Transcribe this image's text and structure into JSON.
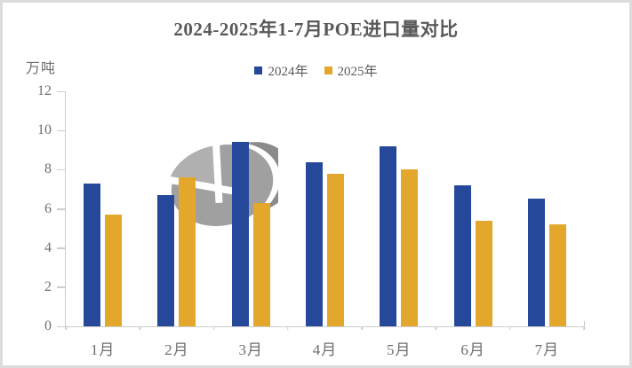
{
  "frame": {
    "border_color": "#DCDCDC",
    "background": "#FFFFFF"
  },
  "header": {
    "title": "2024-2025年1-7月POE进口量对比",
    "title_color": "#595959"
  },
  "axis": {
    "unit_label": "万吨",
    "line_color": "#CDCDCD",
    "label_color": "#6E6E6E"
  },
  "watermark": {
    "name": "gray-globe-logo",
    "base_color": "#A0A0A0",
    "dark_color": "#8B8B8B",
    "light_color": "#B0B0B0"
  },
  "chart_data": {
    "type": "bar",
    "title": "2024-2025年1-7月POE进口量对比",
    "ylabel": "万吨",
    "xlabel": "",
    "categories": [
      "1月",
      "2月",
      "3月",
      "4月",
      "5月",
      "6月",
      "7月"
    ],
    "series": [
      {
        "name": "2024年",
        "color": "#26489B",
        "values": [
          7.3,
          6.7,
          9.4,
          8.4,
          9.2,
          7.2,
          6.5
        ]
      },
      {
        "name": "2025年",
        "color": "#E3A72C",
        "values": [
          5.7,
          7.6,
          6.3,
          7.8,
          8.0,
          5.4,
          5.2
        ]
      }
    ],
    "ylim": [
      0,
      12
    ],
    "ytick_step": 2,
    "legend_position": "top",
    "grid": false
  }
}
